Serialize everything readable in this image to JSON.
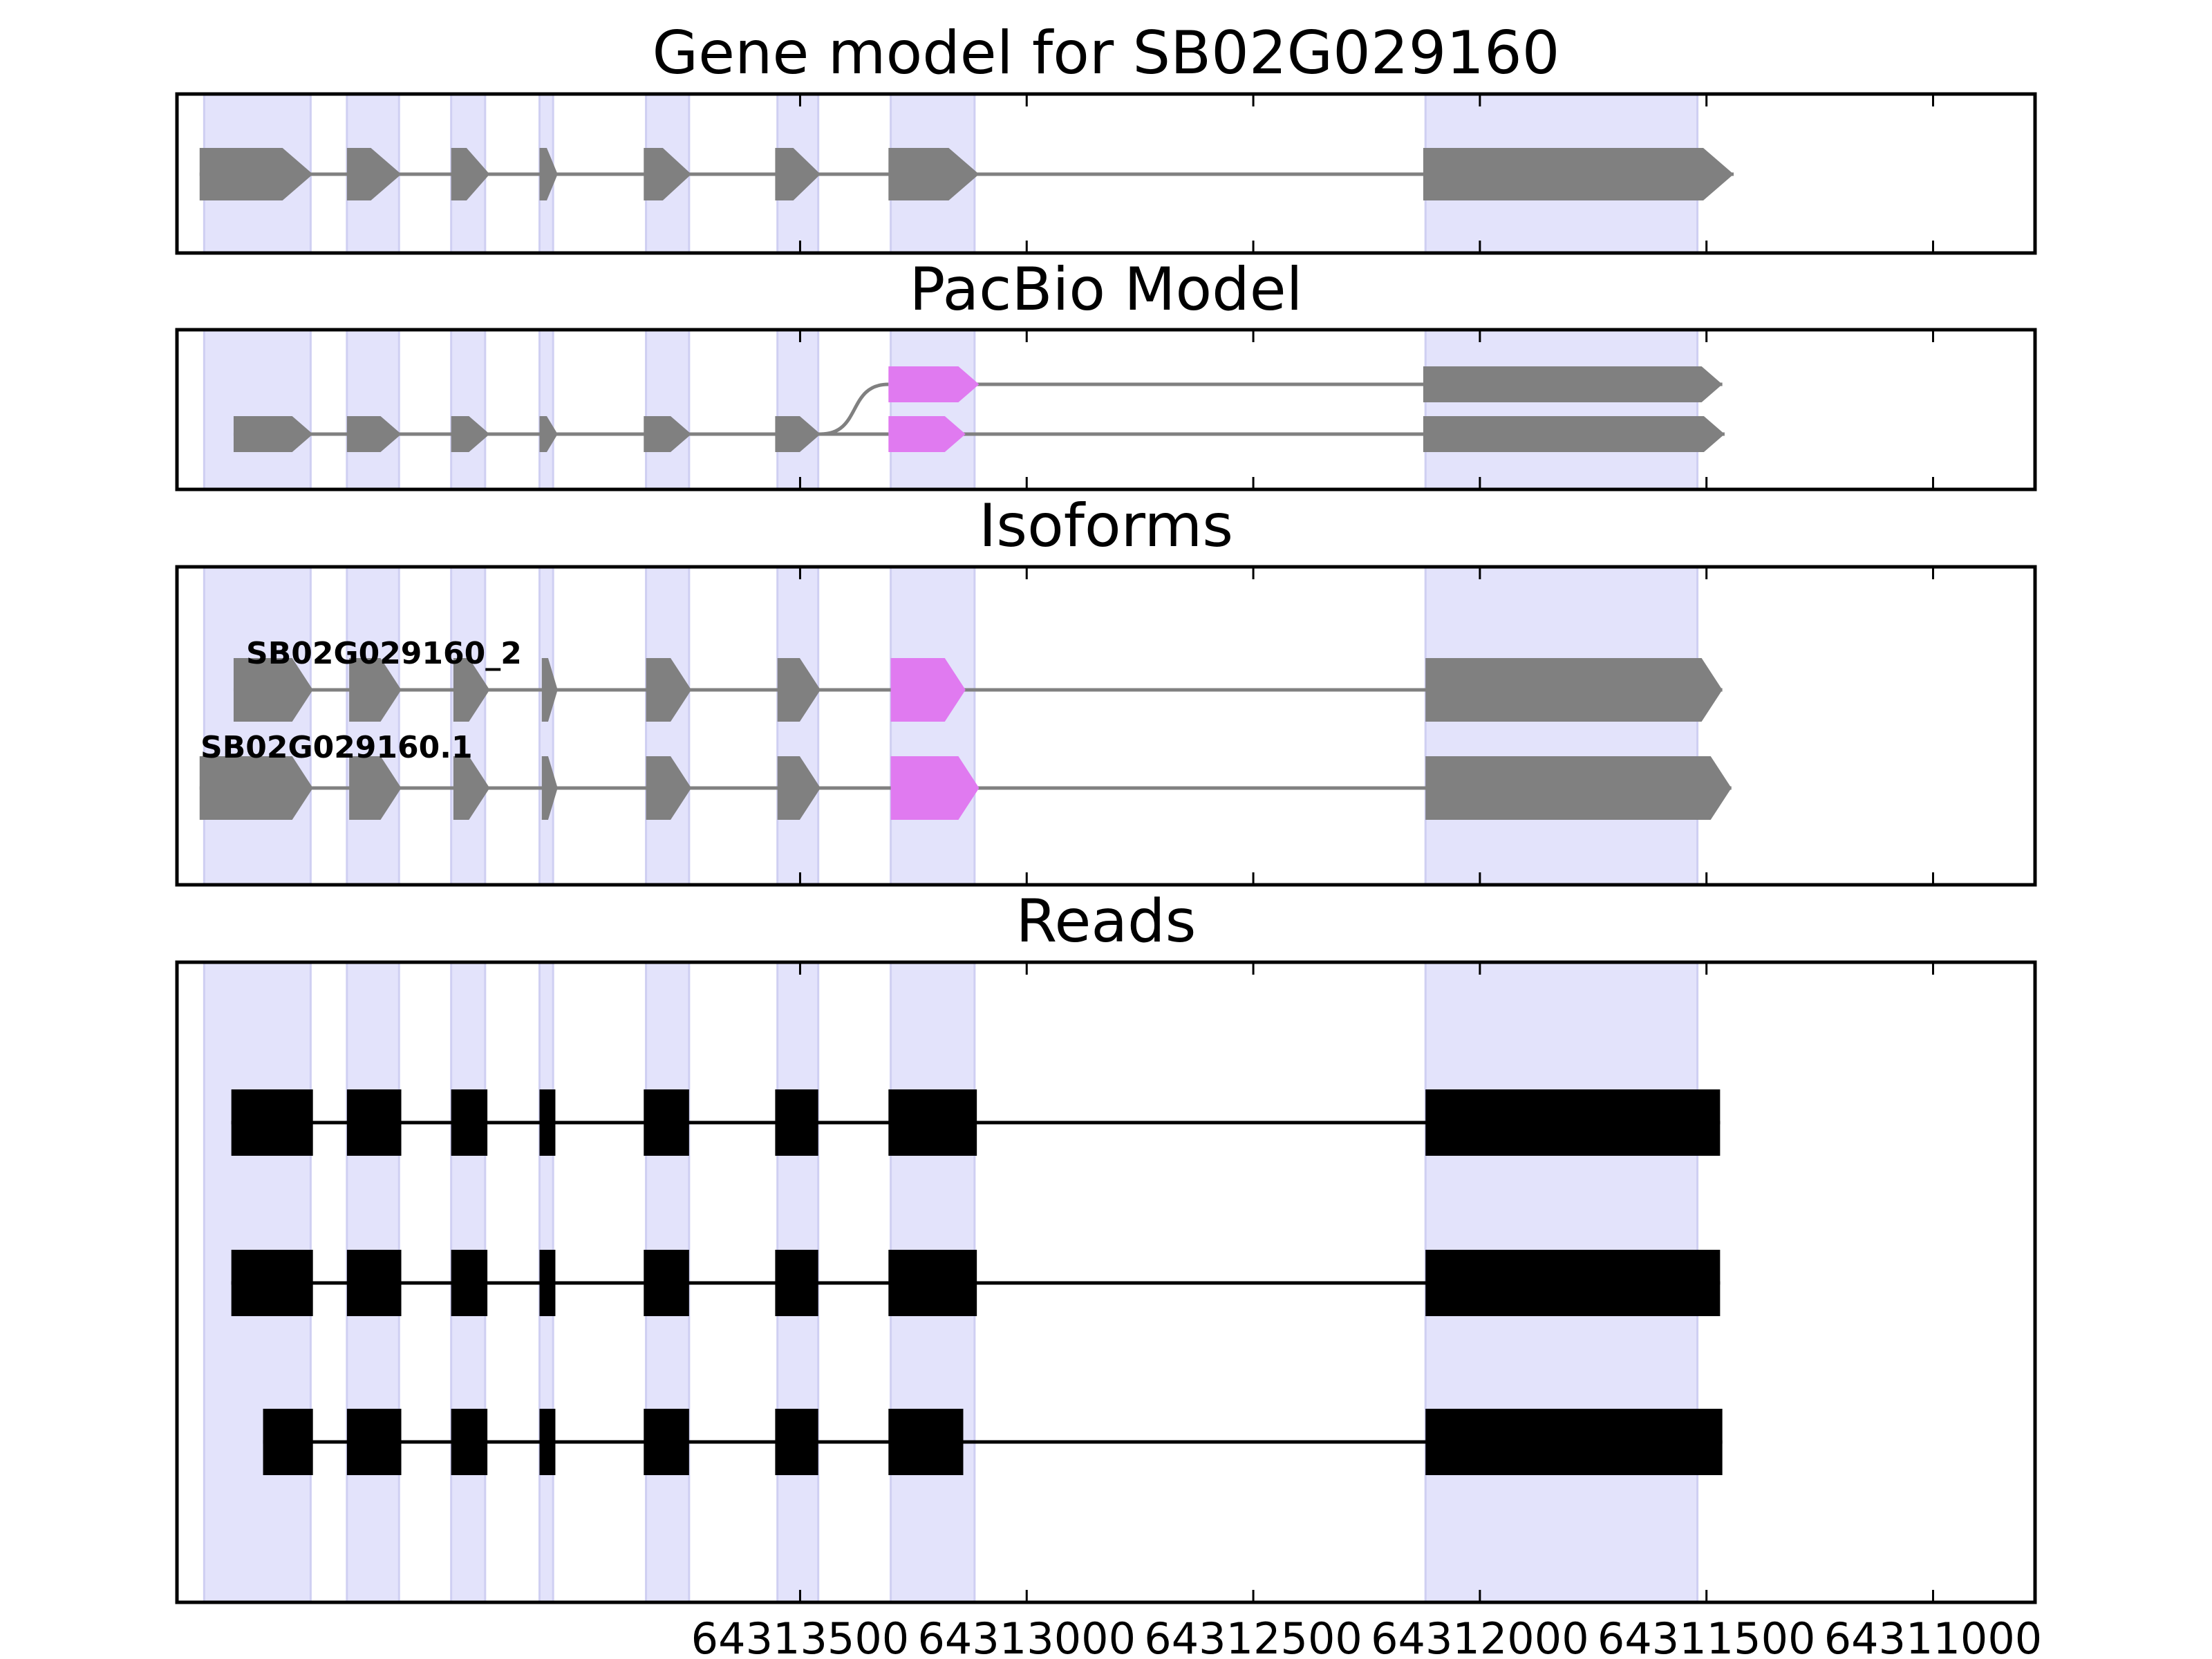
{
  "chart_data": {
    "type": "gene-structure",
    "x_axis": {
      "min": 64314875,
      "max": 64310775,
      "reversed": true,
      "ticks": [
        64313500,
        64313000,
        64312500,
        64312000,
        64311500,
        64311000
      ]
    },
    "exon_regions": [
      [
        64314815,
        64314580
      ],
      [
        64314500,
        64314385
      ],
      [
        64314270,
        64314195
      ],
      [
        64314075,
        64314045
      ],
      [
        64313840,
        64313745
      ],
      [
        64313550,
        64313460
      ],
      [
        64313300,
        64313115
      ],
      [
        64312120,
        64311520
      ]
    ],
    "colors": {
      "gene": "#808080",
      "highlight": "#e07af0",
      "read": "#000000",
      "shade": "#e3e3fb",
      "intron": "#808080"
    },
    "panels": [
      {
        "title": "Gene model for SB02G029160",
        "rows": [
          {
            "label": "",
            "exons": [
              [
                64314825,
                64314575,
                "gene"
              ],
              [
                64314500,
                64314380,
                "gene"
              ],
              [
                64314270,
                64314185,
                "gene"
              ],
              [
                64314075,
                64314035,
                "gene"
              ],
              [
                64313845,
                64313740,
                "gene"
              ],
              [
                64313555,
                64313455,
                "gene"
              ],
              [
                64313305,
                64313105,
                "gene"
              ],
              [
                64312125,
                64311440,
                "gene"
              ]
            ]
          }
        ]
      },
      {
        "title": "PacBio Model",
        "rows": [
          {
            "label": "",
            "branch_from": 64313455,
            "exons": [
              [
                64313305,
                64313105,
                "highlight"
              ],
              [
                64312125,
                64311465,
                "gene"
              ]
            ]
          },
          {
            "label": "",
            "exons": [
              [
                64314750,
                64314575,
                "gene"
              ],
              [
                64314500,
                64314380,
                "gene"
              ],
              [
                64314270,
                64314185,
                "gene"
              ],
              [
                64314075,
                64314035,
                "gene"
              ],
              [
                64313845,
                64313740,
                "gene"
              ],
              [
                64313555,
                64313455,
                "gene"
              ],
              [
                64313305,
                64313135,
                "highlight"
              ],
              [
                64312125,
                64311460,
                "gene"
              ]
            ]
          }
        ]
      },
      {
        "title": "Isoforms",
        "rows": [
          {
            "label": "SB02G029160_2",
            "exons": [
              [
                64314750,
                64314575,
                "gene"
              ],
              [
                64314495,
                64314380,
                "gene"
              ],
              [
                64314265,
                64314185,
                "gene"
              ],
              [
                64314070,
                64314035,
                "gene"
              ],
              [
                64313840,
                64313740,
                "gene"
              ],
              [
                64313550,
                64313455,
                "gene"
              ],
              [
                64313300,
                64313135,
                "highlight"
              ],
              [
                64312120,
                64311465,
                "gene"
              ]
            ]
          },
          {
            "label": "SB02G029160.1",
            "exons": [
              [
                64314825,
                64314575,
                "gene"
              ],
              [
                64314495,
                64314380,
                "gene"
              ],
              [
                64314265,
                64314185,
                "gene"
              ],
              [
                64314070,
                64314035,
                "gene"
              ],
              [
                64313840,
                64313740,
                "gene"
              ],
              [
                64313550,
                64313455,
                "gene"
              ],
              [
                64313300,
                64313105,
                "highlight"
              ],
              [
                64312120,
                64311445,
                "gene"
              ]
            ]
          }
        ]
      },
      {
        "title": "Reads",
        "style": "reads",
        "rows": [
          {
            "label": "",
            "exons": [
              [
                64314755,
                64314575,
                "read"
              ],
              [
                64314500,
                64314380,
                "read"
              ],
              [
                64314270,
                64314190,
                "read"
              ],
              [
                64314075,
                64314040,
                "read"
              ],
              [
                64313845,
                64313745,
                "read"
              ],
              [
                64313555,
                64313460,
                "read"
              ],
              [
                64313305,
                64313110,
                "read"
              ],
              [
                64312120,
                64311470,
                "read"
              ]
            ]
          },
          {
            "label": "",
            "exons": [
              [
                64314755,
                64314575,
                "read"
              ],
              [
                64314500,
                64314380,
                "read"
              ],
              [
                64314270,
                64314190,
                "read"
              ],
              [
                64314075,
                64314040,
                "read"
              ],
              [
                64313845,
                64313745,
                "read"
              ],
              [
                64313555,
                64313460,
                "read"
              ],
              [
                64313305,
                64313110,
                "read"
              ],
              [
                64312120,
                64311470,
                "read"
              ]
            ]
          },
          {
            "label": "",
            "exons": [
              [
                64314685,
                64314575,
                "read"
              ],
              [
                64314500,
                64314380,
                "read"
              ],
              [
                64314270,
                64314190,
                "read"
              ],
              [
                64314075,
                64314040,
                "read"
              ],
              [
                64313845,
                64313745,
                "read"
              ],
              [
                64313555,
                64313460,
                "read"
              ],
              [
                64313305,
                64313140,
                "read"
              ],
              [
                64312120,
                64311465,
                "read"
              ]
            ]
          }
        ]
      }
    ]
  }
}
